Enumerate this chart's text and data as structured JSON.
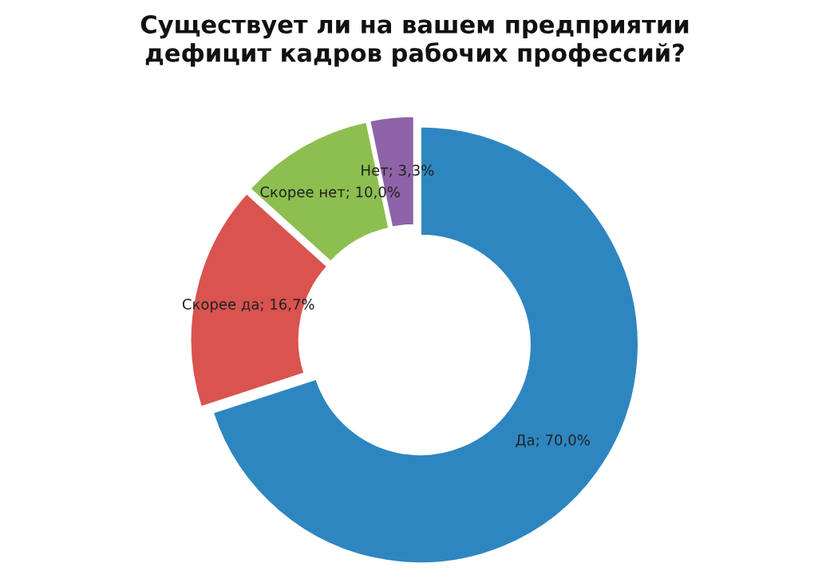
{
  "chart_data": {
    "type": "donut",
    "title": "Существует ли на вашем предприятии\nдефицит кадров рабочих профессий?",
    "categories": [
      "Да",
      "Скорее да",
      "Скорее нет",
      "Нет"
    ],
    "values": [
      70.0,
      16.7,
      10.0,
      3.3
    ],
    "colors": [
      "#2e86c1",
      "#d9534f",
      "#8cbf4f",
      "#8e63a8"
    ],
    "value_labels": [
      "70,0%",
      "16,7%",
      "10,0%",
      "3,3%"
    ],
    "legend": false
  }
}
